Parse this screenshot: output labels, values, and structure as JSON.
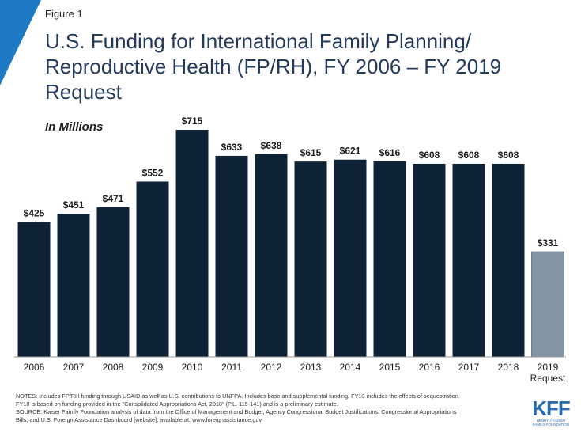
{
  "figure_label": "Figure 1",
  "notes": [
    "NOTES:  Includes FP/RH  funding through USAID as well as U.S. contributions to UNFPA.  Includes base and supplemental funding. FY13 includes the effects of sequestration.",
    "FY18 is based on funding provided in the \"Consolidated Appropriations Act, 2018\" (P.L. 115-141) and is a preliminary estimate.",
    "SOURCE:  Kaiser Family Foundation analysis of data from the Office of Management and Budget, Agency Congressional Budget Justifications, Congressional Appropriations",
    "Bills, and U.S.  Foreign Assistance Dashboard [website], available at: www.foreignassistance.gov."
  ],
  "logo": {
    "text": "KFF",
    "subtext_1": "HENRY J KAISER",
    "subtext_2": "FAMILY FOUNDATION"
  },
  "colors": {
    "bar": "#0f2337",
    "request_bar": "#8394a5",
    "title": "#243a5a",
    "accent": "#1f7ac5",
    "logo": "#2b6cb0"
  },
  "chart_data": {
    "type": "bar",
    "title": "U.S. Funding for International Family Planning/ Reproductive Health (FP/RH), FY 2006 – FY 2019 Request",
    "subtitle": "In Millions",
    "categories": [
      "2006",
      "2007",
      "2008",
      "2009",
      "2010",
      "2011",
      "2012",
      "2013",
      "2014",
      "2015",
      "2016",
      "2017",
      "2018",
      "2019\nRequest"
    ],
    "values": [
      425,
      451,
      471,
      552,
      715,
      633,
      638,
      615,
      621,
      616,
      608,
      608,
      608,
      331
    ],
    "data_labels": [
      "$425",
      "$451",
      "$471",
      "$552",
      "$715",
      "$633",
      "$638",
      "$615",
      "$621",
      "$616",
      "$608",
      "$608",
      "$608",
      "$331"
    ],
    "highlight_index": 13,
    "ylim": [
      0,
      725
    ],
    "xlabel": "",
    "ylabel": "",
    "grid": false,
    "legend": "none"
  }
}
